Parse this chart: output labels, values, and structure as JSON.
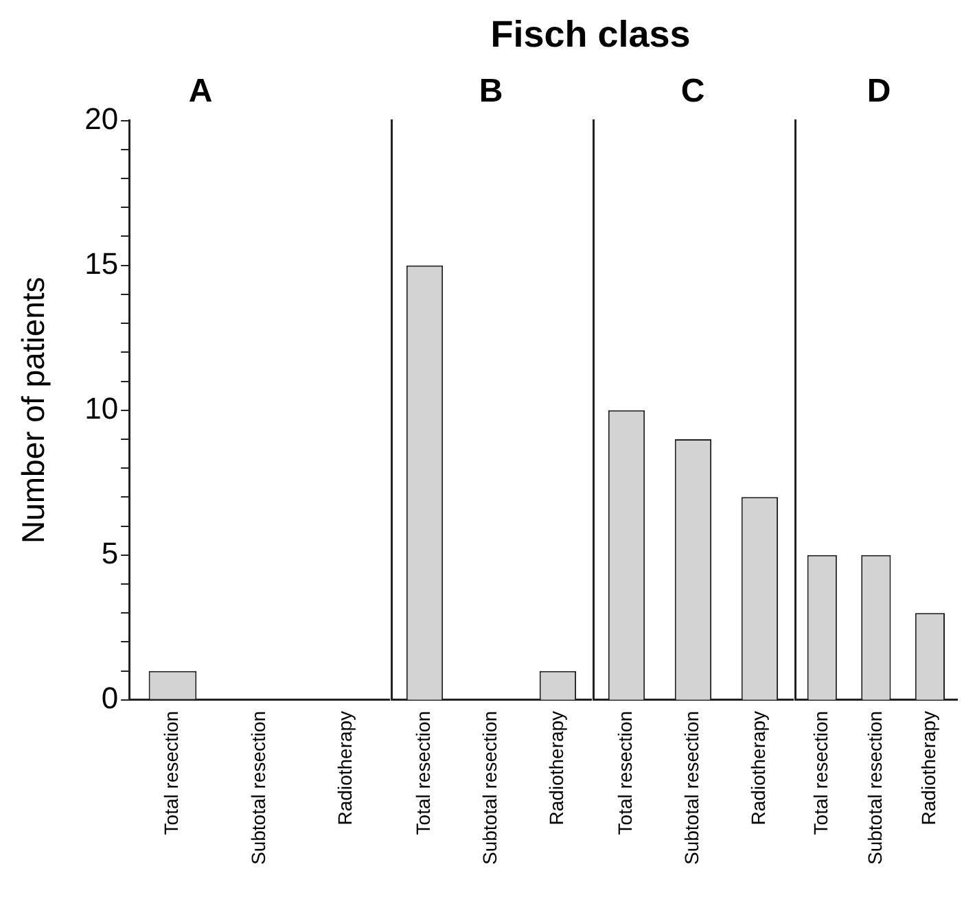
{
  "chart_data": [
    {
      "type": "bar",
      "title": "A",
      "annotations": [
        "Fisch class"
      ],
      "ylabel": "Number of patients",
      "categories": [
        "Total resection",
        "Subtotal resection",
        "Radiotherapy"
      ],
      "values": [
        1,
        0,
        0
      ],
      "color": "#d3d3d3",
      "ylim": [
        0,
        20
      ],
      "yticks": [
        0,
        {
          "value": 1,
          "label": null
        },
        {
          "value": 2,
          "label": null
        },
        {
          "value": 3,
          "label": null
        },
        {
          "value": 4,
          "label": null
        },
        5,
        {
          "value": 6,
          "label": null
        },
        {
          "value": 7,
          "label": null
        },
        {
          "value": 8,
          "label": null
        },
        {
          "value": 9,
          "label": null
        },
        10,
        {
          "value": 11,
          "label": null
        },
        {
          "value": 12,
          "label": null
        },
        {
          "value": 13,
          "label": null
        },
        {
          "value": 14,
          "label": null
        },
        15,
        {
          "value": 16,
          "label": null
        },
        {
          "value": 17,
          "label": null
        },
        {
          "value": 18,
          "label": null
        },
        {
          "value": 19,
          "label": null
        },
        20
      ]
    },
    {
      "type": "bar",
      "title": "B",
      "categories": [
        "Total resection",
        "Subtotal resection",
        "Radiotherapy"
      ],
      "values": [
        15,
        0,
        1
      ],
      "color": "#d3d3d3",
      "ylim": [
        0,
        20
      ],
      "tick_labels": "x"
    },
    {
      "type": "bar",
      "title": "C",
      "categories": [
        "Total resection",
        "Subtotal resection",
        "Radiotherapy"
      ],
      "values": [
        10,
        9,
        7
      ],
      "color": "#d3d3d3",
      "ylim": [
        0,
        20
      ],
      "tick_labels": "x"
    },
    {
      "type": "bar",
      "title": "D",
      "categories": [
        "Total resection",
        "Subtotal resection",
        "Radiotherapy"
      ],
      "values": [
        5,
        5,
        3
      ],
      "color": "#d3d3d3",
      "ylim": [
        0,
        20
      ],
      "tick_labels": "x"
    }
  ]
}
